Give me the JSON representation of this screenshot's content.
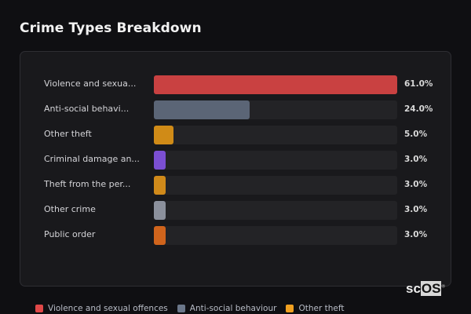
{
  "title": "Crime Types Breakdown",
  "chart_data": {
    "type": "bar",
    "orientation": "horizontal",
    "title": "Crime Types Breakdown",
    "categories": [
      "Violence and sexua...",
      "Anti-social behavi...",
      "Other theft",
      "Criminal damage an...",
      "Theft from the per...",
      "Other crime",
      "Public order"
    ],
    "values": [
      61.0,
      24.0,
      5.0,
      3.0,
      3.0,
      3.0,
      3.0
    ],
    "value_labels": [
      "61.0%",
      "24.0%",
      "5.0%",
      "3.0%",
      "3.0%",
      "3.0%",
      "3.0%"
    ],
    "colors": [
      "#c94141",
      "#5b6576",
      "#d08b17",
      "#7b4fd2",
      "#d08a1a",
      "#8b909c",
      "#d0641c"
    ],
    "xlim": [
      0,
      61
    ]
  },
  "legend": [
    {
      "label": "Violence and sexual offences",
      "color": "#e04848"
    },
    {
      "label": "Anti-social behaviour",
      "color": "#6b778a"
    },
    {
      "label": "Other theft",
      "color": "#f0a020"
    }
  ],
  "logo": {
    "text_a": "sc",
    "text_b": "OS",
    "mark": "®"
  }
}
